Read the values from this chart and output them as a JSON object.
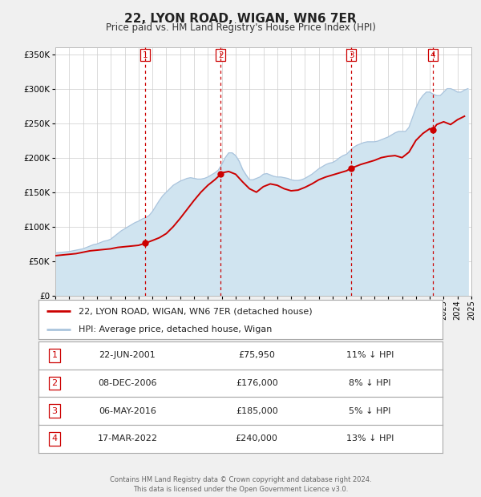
{
  "title": "22, LYON ROAD, WIGAN, WN6 7ER",
  "subtitle": "Price paid vs. HM Land Registry's House Price Index (HPI)",
  "bg_color": "#f0f0f0",
  "plot_bg_color": "#ffffff",
  "grid_color": "#cccccc",
  "hpi_color": "#aac4dd",
  "hpi_fill_color": "#d0e4f0",
  "price_color": "#cc0000",
  "ylim": [
    0,
    360000
  ],
  "yticks": [
    0,
    50000,
    100000,
    150000,
    200000,
    250000,
    300000,
    350000
  ],
  "ytick_labels": [
    "£0",
    "£50K",
    "£100K",
    "£150K",
    "£200K",
    "£250K",
    "£300K",
    "£350K"
  ],
  "year_start": 1995,
  "year_end": 2025,
  "transactions": [
    {
      "label": "1",
      "date": "22-JUN-2001",
      "price": 75950,
      "pct": "11%",
      "x": 2001.47
    },
    {
      "label": "2",
      "date": "08-DEC-2006",
      "price": 176000,
      "pct": "8%",
      "x": 2006.93
    },
    {
      "label": "3",
      "date": "06-MAY-2016",
      "price": 185000,
      "pct": "5%",
      "x": 2016.35
    },
    {
      "label": "4",
      "date": "17-MAR-2022",
      "price": 240000,
      "pct": "13%",
      "x": 2022.21
    }
  ],
  "legend_line1": "22, LYON ROAD, WIGAN, WN6 7ER (detached house)",
  "legend_line2": "HPI: Average price, detached house, Wigan",
  "footer": "Contains HM Land Registry data © Crown copyright and database right 2024.\nThis data is licensed under the Open Government Licence v3.0.",
  "hpi_data_x": [
    1995.0,
    1995.25,
    1995.5,
    1995.75,
    1996.0,
    1996.25,
    1996.5,
    1996.75,
    1997.0,
    1997.25,
    1997.5,
    1997.75,
    1998.0,
    1998.25,
    1998.5,
    1998.75,
    1999.0,
    1999.25,
    1999.5,
    1999.75,
    2000.0,
    2000.25,
    2000.5,
    2000.75,
    2001.0,
    2001.25,
    2001.5,
    2001.75,
    2002.0,
    2002.25,
    2002.5,
    2002.75,
    2003.0,
    2003.25,
    2003.5,
    2003.75,
    2004.0,
    2004.25,
    2004.5,
    2004.75,
    2005.0,
    2005.25,
    2005.5,
    2005.75,
    2006.0,
    2006.25,
    2006.5,
    2006.75,
    2007.0,
    2007.25,
    2007.5,
    2007.75,
    2008.0,
    2008.25,
    2008.5,
    2008.75,
    2009.0,
    2009.25,
    2009.5,
    2009.75,
    2010.0,
    2010.25,
    2010.5,
    2010.75,
    2011.0,
    2011.25,
    2011.5,
    2011.75,
    2012.0,
    2012.25,
    2012.5,
    2012.75,
    2013.0,
    2013.25,
    2013.5,
    2013.75,
    2014.0,
    2014.25,
    2014.5,
    2014.75,
    2015.0,
    2015.25,
    2015.5,
    2015.75,
    2016.0,
    2016.25,
    2016.5,
    2016.75,
    2017.0,
    2017.25,
    2017.5,
    2017.75,
    2018.0,
    2018.25,
    2018.5,
    2018.75,
    2019.0,
    2019.25,
    2019.5,
    2019.75,
    2020.0,
    2020.25,
    2020.5,
    2020.75,
    2021.0,
    2021.25,
    2021.5,
    2021.75,
    2022.0,
    2022.25,
    2022.5,
    2022.75,
    2023.0,
    2023.25,
    2023.5,
    2023.75,
    2024.0,
    2024.25,
    2024.5,
    2024.75
  ],
  "hpi_data_y": [
    62000,
    62500,
    63000,
    63500,
    64000,
    65000,
    66000,
    67000,
    68000,
    70000,
    72000,
    74000,
    75000,
    77000,
    79000,
    80000,
    82000,
    86000,
    90000,
    94000,
    97000,
    100000,
    103000,
    106000,
    108000,
    111000,
    113000,
    116000,
    122000,
    130000,
    138000,
    145000,
    150000,
    155000,
    160000,
    163000,
    166000,
    168000,
    170000,
    171000,
    170000,
    169000,
    169000,
    170000,
    172000,
    175000,
    178000,
    182000,
    190000,
    200000,
    207000,
    207000,
    203000,
    195000,
    183000,
    175000,
    168000,
    168000,
    170000,
    172000,
    176000,
    177000,
    175000,
    173000,
    172000,
    172000,
    171000,
    170000,
    168000,
    167000,
    167000,
    168000,
    170000,
    173000,
    176000,
    180000,
    184000,
    187000,
    190000,
    192000,
    193000,
    196000,
    200000,
    203000,
    205000,
    210000,
    215000,
    218000,
    220000,
    222000,
    223000,
    223000,
    223000,
    224000,
    226000,
    228000,
    230000,
    233000,
    236000,
    238000,
    238000,
    238000,
    244000,
    258000,
    272000,
    283000,
    290000,
    295000,
    295000,
    292000,
    290000,
    290000,
    295000,
    300000,
    300000,
    298000,
    295000,
    295000,
    298000,
    300000
  ],
  "price_line_x": [
    1995.0,
    1995.5,
    1996.0,
    1996.5,
    1997.0,
    1997.5,
    1998.0,
    1998.5,
    1999.0,
    1999.5,
    2000.0,
    2000.5,
    2001.0,
    2001.47,
    2002.0,
    2002.5,
    2003.0,
    2003.5,
    2004.0,
    2004.5,
    2005.0,
    2005.5,
    2006.0,
    2006.5,
    2006.93,
    2007.0,
    2007.5,
    2008.0,
    2008.5,
    2009.0,
    2009.5,
    2010.0,
    2010.5,
    2011.0,
    2011.5,
    2012.0,
    2012.5,
    2013.0,
    2013.5,
    2014.0,
    2014.5,
    2015.0,
    2015.5,
    2016.0,
    2016.35,
    2016.5,
    2017.0,
    2017.5,
    2018.0,
    2018.5,
    2019.0,
    2019.5,
    2020.0,
    2020.5,
    2021.0,
    2021.5,
    2022.0,
    2022.21,
    2022.5,
    2023.0,
    2023.5,
    2024.0,
    2024.5
  ],
  "price_line_y": [
    58000,
    59000,
    60000,
    61000,
    63000,
    65000,
    66000,
    67000,
    68000,
    70000,
    71000,
    72000,
    73000,
    75950,
    80000,
    84000,
    90000,
    100000,
    112000,
    125000,
    138000,
    150000,
    160000,
    168000,
    176000,
    178000,
    180000,
    176000,
    165000,
    155000,
    150000,
    158000,
    162000,
    160000,
    155000,
    152000,
    153000,
    157000,
    162000,
    168000,
    172000,
    175000,
    178000,
    181000,
    185000,
    186000,
    190000,
    193000,
    196000,
    200000,
    202000,
    203000,
    200000,
    208000,
    225000,
    235000,
    242000,
    240000,
    248000,
    252000,
    248000,
    255000,
    260000
  ]
}
